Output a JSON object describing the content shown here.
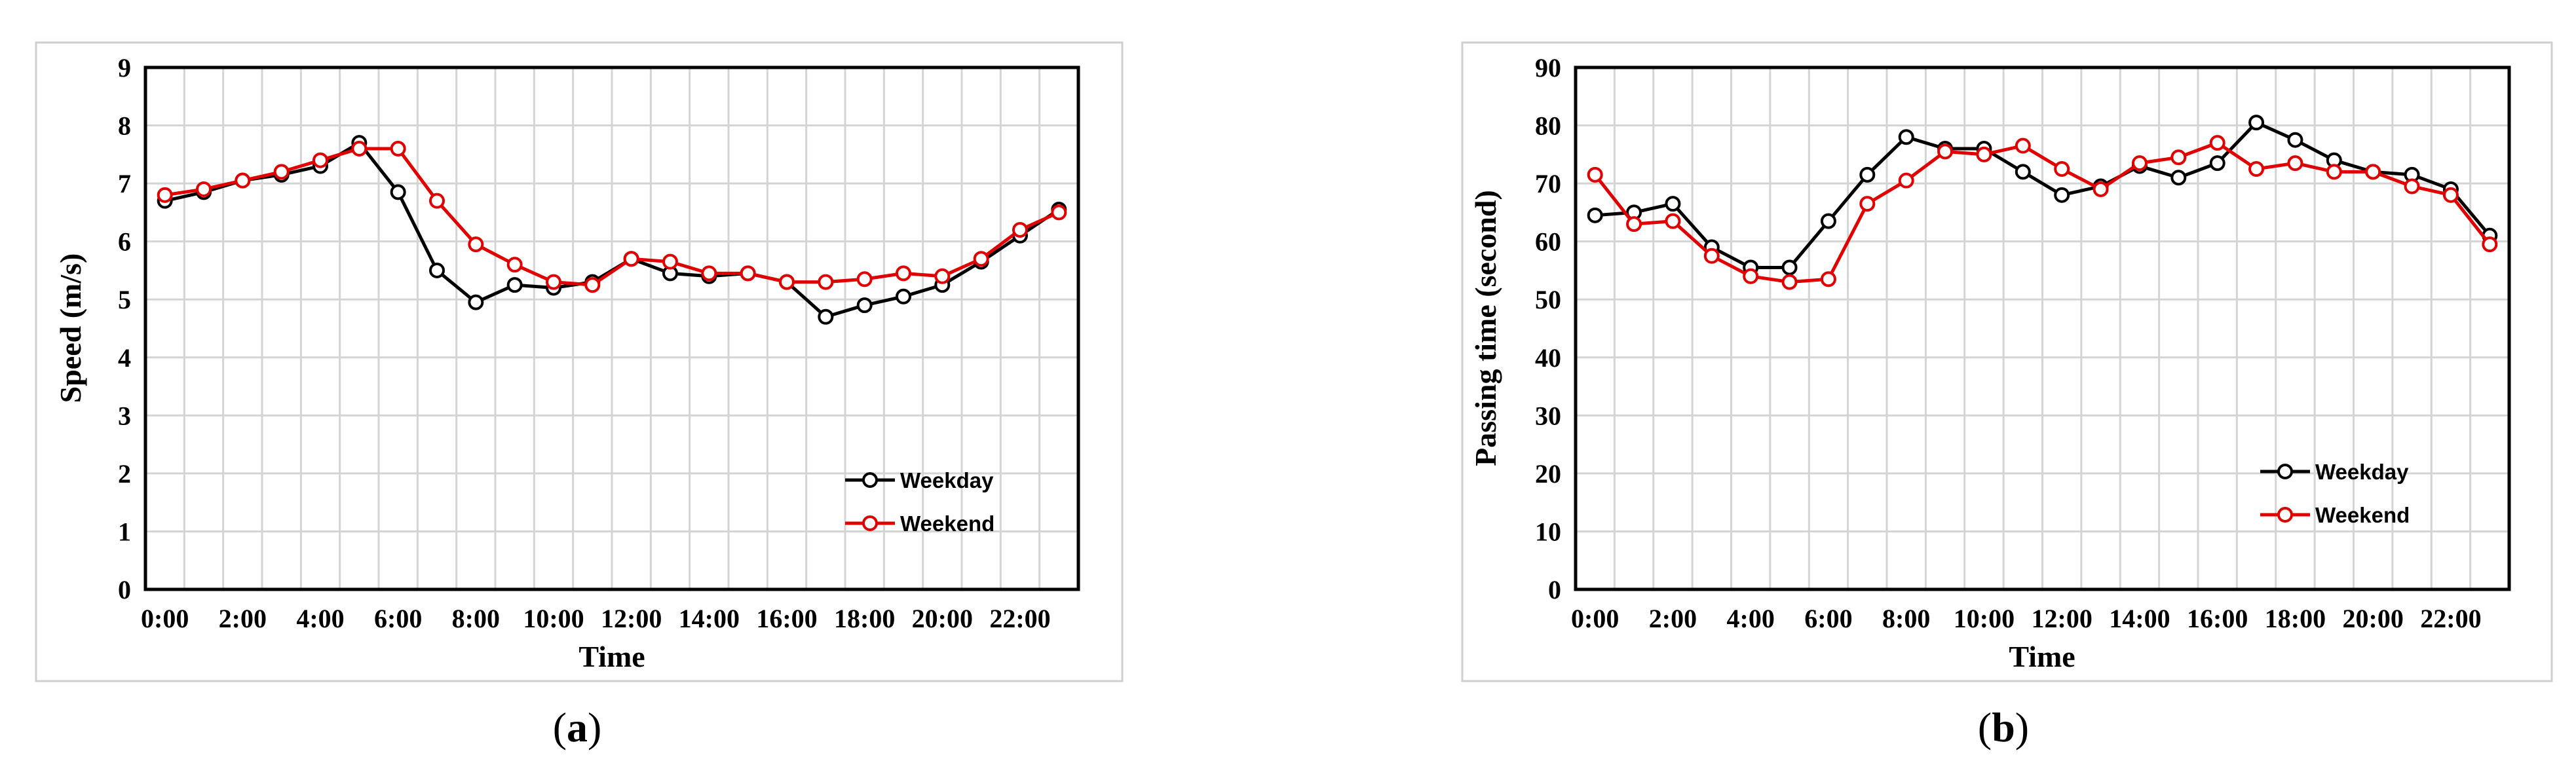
{
  "chart_data": [
    {
      "type": "line",
      "panel_label": "a",
      "xlabel": "Time",
      "ylabel": "Speed (m/s)",
      "ylim": [
        0,
        9
      ],
      "yticks": [
        "0",
        "1",
        "2",
        "3",
        "4",
        "5",
        "6",
        "7",
        "8",
        "9"
      ],
      "xtick_labels": [
        "0:00",
        "2:00",
        "4:00",
        "6:00",
        "8:00",
        "10:00",
        "12:00",
        "14:00",
        "16:00",
        "18:00",
        "20:00",
        "22:00"
      ],
      "grid": true,
      "legend_position": "bottom-right",
      "series": [
        {
          "name": "Weekday",
          "color": "#000000",
          "values": [
            6.7,
            6.85,
            7.05,
            7.15,
            7.3,
            7.7,
            6.85,
            5.5,
            4.95,
            5.25,
            5.2,
            5.3,
            5.7,
            5.45,
            5.4,
            5.45,
            5.3,
            4.7,
            4.9,
            5.05,
            5.25,
            5.65,
            6.1,
            6.55
          ]
        },
        {
          "name": "Weekend",
          "color": "#e00000",
          "values": [
            6.8,
            6.9,
            7.05,
            7.2,
            7.4,
            7.6,
            7.6,
            6.7,
            5.95,
            5.6,
            5.3,
            5.25,
            5.7,
            5.65,
            5.45,
            5.45,
            5.3,
            5.3,
            5.35,
            5.45,
            5.4,
            5.7,
            6.2,
            6.5
          ]
        }
      ]
    },
    {
      "type": "line",
      "panel_label": "b",
      "xlabel": "Time",
      "ylabel": "Passing time (second)",
      "ylim": [
        0,
        90
      ],
      "yticks": [
        "0",
        "10",
        "20",
        "30",
        "40",
        "50",
        "60",
        "70",
        "80",
        "90"
      ],
      "xtick_labels": [
        "0:00",
        "2:00",
        "4:00",
        "6:00",
        "8:00",
        "10:00",
        "12:00",
        "14:00",
        "16:00",
        "18:00",
        "20:00",
        "22:00"
      ],
      "grid": true,
      "legend_position": "bottom-right",
      "series": [
        {
          "name": "Weekday",
          "color": "#000000",
          "values": [
            64.5,
            65,
            66.5,
            59,
            55.5,
            55.5,
            63.5,
            71.5,
            78,
            76,
            76,
            72,
            68,
            69.5,
            73,
            71,
            73.5,
            80.5,
            77.5,
            74,
            72,
            71.5,
            69,
            61
          ]
        },
        {
          "name": "Weekend",
          "color": "#e00000",
          "values": [
            71.5,
            63,
            63.5,
            57.5,
            54,
            53,
            53.5,
            66.5,
            70.5,
            75.5,
            75,
            76.5,
            72.5,
            69,
            73.5,
            74.5,
            77,
            72.5,
            73.5,
            72,
            72,
            69.5,
            68,
            59.5
          ]
        }
      ]
    }
  ]
}
